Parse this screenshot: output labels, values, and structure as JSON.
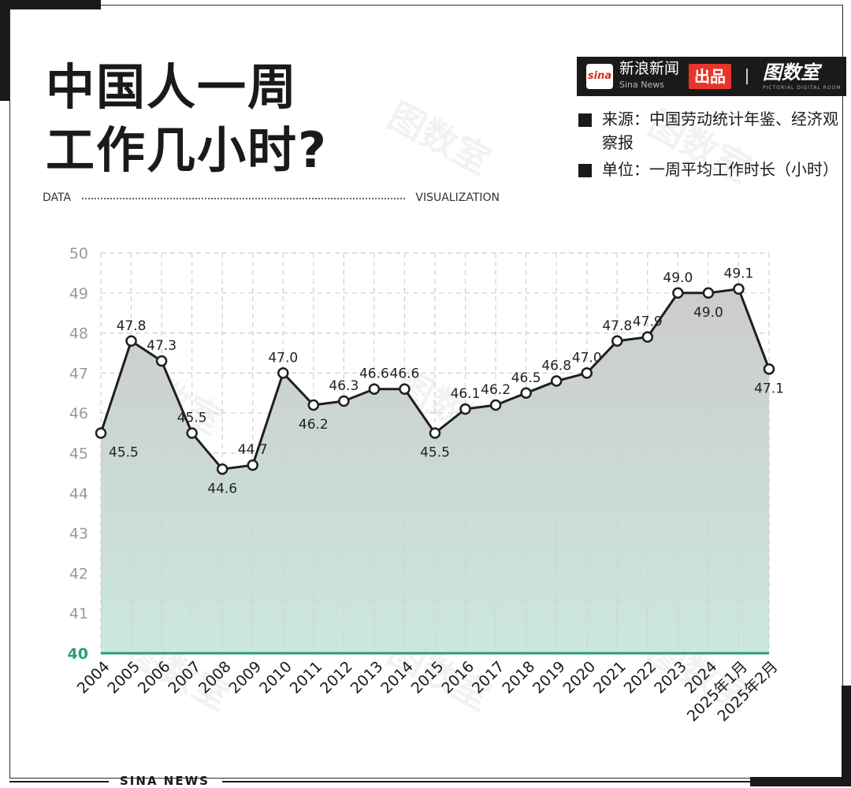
{
  "title": {
    "line1": "中国人一周",
    "line2": "工作几小时?"
  },
  "tagline": {
    "left": "DATA",
    "right": "VISUALIZATION"
  },
  "brand": {
    "sina_logo": "sina",
    "name_cn": "新浪新闻",
    "name_en": "Sina News",
    "tag": "出品",
    "logo2": "图数室",
    "logo2_sub": "PICTORIAL DIGITAL ROOM"
  },
  "notes": {
    "source": "来源：中国劳动统计年鉴、经济观察报",
    "unit": "单位：一周平均工作时长（小时）"
  },
  "footer": {
    "label": "SINA NEWS"
  },
  "colors": {
    "line": "#1f1f1f",
    "fill_top": "#c9c9c9",
    "fill_bottom": "#c8e6dc",
    "baseline": "#2a9d7a",
    "grid": "#cfcfcf"
  },
  "chart_data": {
    "type": "area",
    "x": [
      "2004",
      "2005",
      "2006",
      "2007",
      "2008",
      "2009",
      "2010",
      "2011",
      "2012",
      "2013",
      "2014",
      "2015",
      "2016",
      "2017",
      "2018",
      "2019",
      "2020",
      "2021",
      "2022",
      "2023",
      "2024",
      "2025年1月",
      "2025年2月"
    ],
    "values": [
      45.5,
      47.8,
      47.3,
      45.5,
      44.6,
      44.7,
      47.0,
      46.2,
      46.3,
      46.6,
      46.6,
      45.5,
      46.1,
      46.2,
      46.5,
      46.8,
      47.0,
      47.8,
      47.9,
      49.0,
      49.0,
      49.1,
      47.1
    ],
    "labels": [
      "45.5",
      "47.8",
      "47.3",
      "45.5",
      "44.6",
      "44.7",
      "47.0",
      "46.2",
      "46.3",
      "46.6",
      "46.6",
      "45.5",
      "46.1",
      "46.2",
      "46.5",
      "46.8",
      "47.0",
      "47.8",
      "47.9",
      "49.0",
      "49.0",
      "49.1",
      "47.1"
    ],
    "yticks": [
      "40",
      "41",
      "42",
      "43",
      "44",
      "45",
      "46",
      "47",
      "48",
      "49",
      "50"
    ],
    "ylim": [
      40,
      50
    ],
    "grid": true
  }
}
